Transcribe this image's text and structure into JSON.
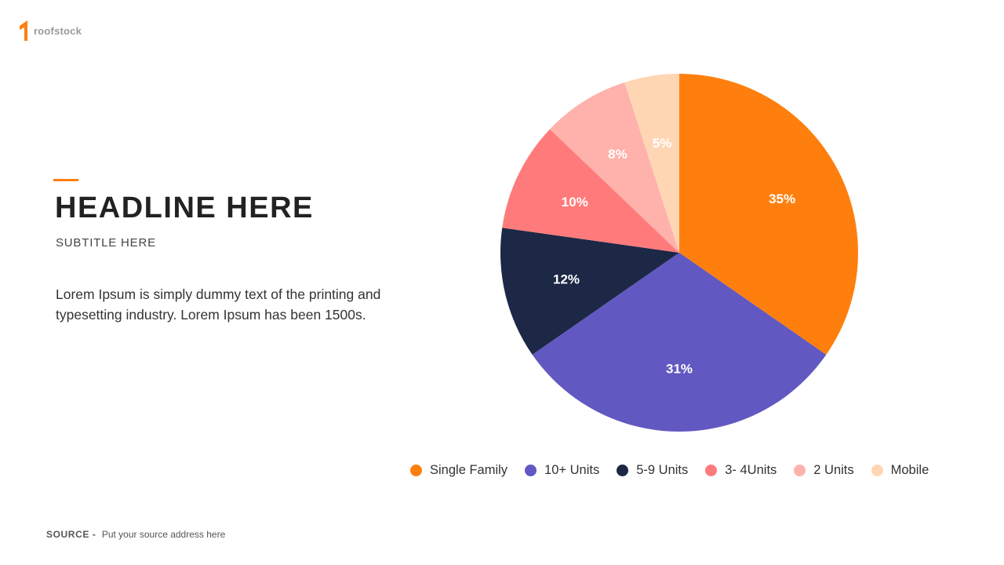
{
  "brand": {
    "name": "roofstock",
    "logo_color": "#ff7f0e",
    "logo_icon": "roofstock-logo-icon"
  },
  "accent_color": "#ff7f0e",
  "headline": "HEADLINE HERE",
  "subtitle": "SUBTITLE HERE",
  "body": "Lorem Ipsum is simply dummy text of the printing and typesetting industry. Lorem Ipsum has been 1500s.",
  "source": {
    "label": "SOURCE -",
    "text": "Put your source address here"
  },
  "chart_data": {
    "type": "pie",
    "title": "",
    "categories": [
      "Single Family",
      "10+ Units",
      "5-9 Units",
      "3- 4Units",
      "2 Units",
      "Mobile"
    ],
    "values": [
      35,
      31,
      12,
      10,
      8,
      5
    ],
    "data_labels": [
      "35%",
      "31%",
      "12%",
      "10%",
      "8%",
      "5%"
    ],
    "colors": [
      "#ff7f0e",
      "#6258c2",
      "#1c2846",
      "#ff7b7b",
      "#ffb1ab",
      "#ffd6b4"
    ],
    "start_angle_deg": 0,
    "direction": "clockwise",
    "legend_position": "bottom"
  }
}
